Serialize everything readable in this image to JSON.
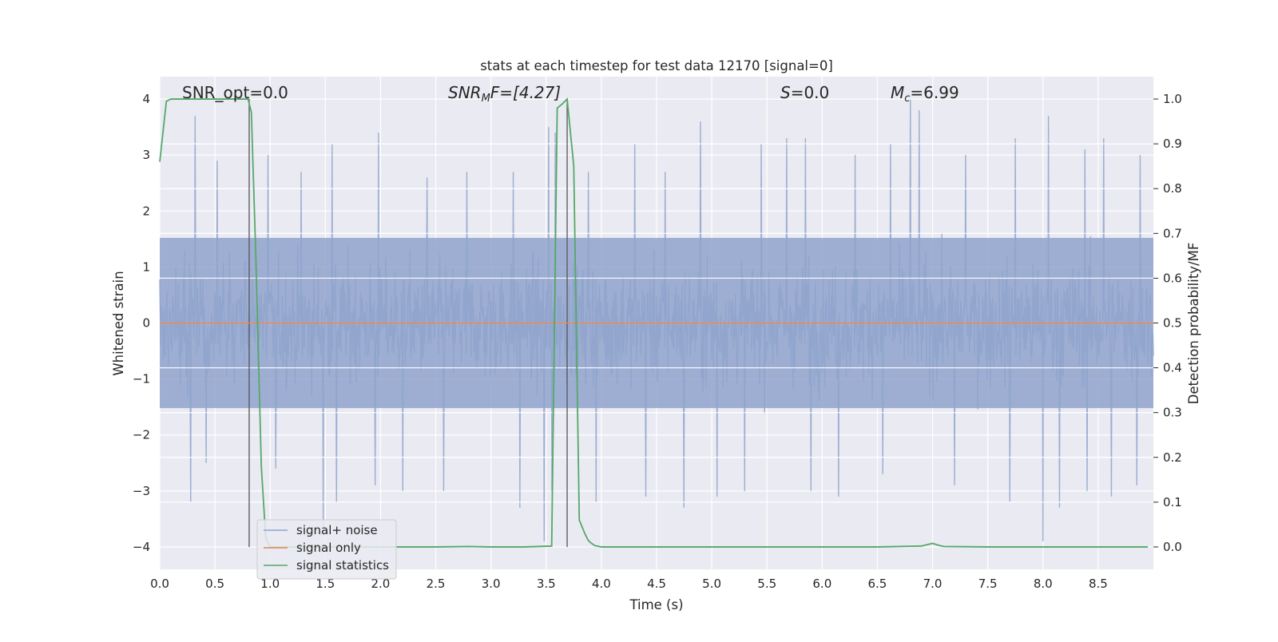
{
  "chart_data": {
    "type": "line",
    "title": "stats at each timestep for test data 12170 [signal=0]",
    "xlabel": "Time (s)",
    "ylabel": "Whitened strain",
    "y2label": "Detection probability/MF",
    "xlim": [
      0.0,
      9.0
    ],
    "ylim": [
      -4.4,
      4.4
    ],
    "y2lim": [
      -0.05,
      1.05
    ],
    "x_ticks": [
      "0.0",
      "0.5",
      "1.0",
      "1.5",
      "2.0",
      "2.5",
      "3.0",
      "3.5",
      "4.0",
      "4.5",
      "5.0",
      "5.5",
      "6.0",
      "6.5",
      "7.0",
      "7.5",
      "8.0",
      "8.5"
    ],
    "y_ticks": [
      "4",
      "3",
      "2",
      "1",
      "0",
      "−1",
      "−2",
      "−3",
      "−4"
    ],
    "y2_ticks": [
      "1.0",
      "0.9",
      "0.8",
      "0.7",
      "0.6",
      "0.5",
      "0.4",
      "0.3",
      "0.2",
      "0.1",
      "0.0"
    ],
    "grid": true,
    "legend_position": "lower-left",
    "annotations": {
      "snr_opt": "SNR_opt=0.0",
      "snr_mf_main": "SNR",
      "snr_mf_sub": "M",
      "snr_mf_rest": "F=[4.27]",
      "s_main": "S",
      "s_rest": "=0.0",
      "mc_main": "M",
      "mc_sub": "c",
      "mc_rest": "=6.99"
    },
    "vertical_lines_x": [
      0.81,
      3.69
    ],
    "series": [
      {
        "name": "signal+ noise",
        "color": "#8fa3cc",
        "note_style": "dense whitened noise",
        "values_summary": {
          "typical_band": [
            -1.6,
            1.6
          ],
          "max": 4.0,
          "min": -3.9
        },
        "peaks": [
          [
            0.32,
            3.7
          ],
          [
            0.52,
            2.9
          ],
          [
            0.98,
            3.0
          ],
          [
            1.28,
            2.7
          ],
          [
            1.56,
            3.2
          ],
          [
            1.98,
            3.4
          ],
          [
            2.2,
            2.9
          ],
          [
            2.42,
            2.6
          ],
          [
            2.78,
            2.7
          ],
          [
            3.2,
            2.7
          ],
          [
            3.52,
            3.5
          ],
          [
            3.58,
            3.4
          ],
          [
            3.88,
            2.7
          ],
          [
            4.3,
            3.2
          ],
          [
            4.58,
            2.7
          ],
          [
            4.9,
            3.6
          ],
          [
            5.45,
            3.2
          ],
          [
            5.68,
            3.3
          ],
          [
            5.85,
            3.3
          ],
          [
            6.3,
            3.0
          ],
          [
            6.62,
            3.2
          ],
          [
            6.8,
            4.0
          ],
          [
            6.88,
            3.8
          ],
          [
            7.3,
            3.0
          ],
          [
            7.75,
            3.3
          ],
          [
            8.05,
            3.7
          ],
          [
            8.38,
            3.1
          ],
          [
            8.55,
            3.3
          ],
          [
            8.88,
            3.0
          ]
        ],
        "troughs": [
          [
            0.28,
            -3.2
          ],
          [
            0.42,
            -2.5
          ],
          [
            1.05,
            -2.6
          ],
          [
            1.48,
            -3.8
          ],
          [
            1.6,
            -3.2
          ],
          [
            1.95,
            -2.9
          ],
          [
            2.2,
            -3.0
          ],
          [
            2.57,
            -3.0
          ],
          [
            3.26,
            -3.3
          ],
          [
            3.48,
            -3.9
          ],
          [
            3.55,
            -3.0
          ],
          [
            3.95,
            -3.2
          ],
          [
            4.4,
            -3.1
          ],
          [
            4.75,
            -3.3
          ],
          [
            5.05,
            -3.1
          ],
          [
            5.3,
            -3.0
          ],
          [
            5.9,
            -3.0
          ],
          [
            6.15,
            -3.1
          ],
          [
            6.55,
            -2.7
          ],
          [
            7.2,
            -2.9
          ],
          [
            7.7,
            -3.2
          ],
          [
            8.0,
            -3.9
          ],
          [
            8.15,
            -3.3
          ],
          [
            8.4,
            -3.0
          ],
          [
            8.62,
            -3.1
          ],
          [
            8.85,
            -2.9
          ]
        ]
      },
      {
        "name": "signal only",
        "color": "#dd8452",
        "x": [
          0.0,
          9.0
        ],
        "y": [
          0.0,
          0.0
        ]
      },
      {
        "name": "signal statistics",
        "color": "#55a868",
        "axis": "right",
        "x": [
          0.0,
          0.06,
          0.1,
          0.15,
          0.2,
          0.3,
          0.4,
          0.5,
          0.6,
          0.7,
          0.8,
          0.83,
          0.87,
          0.92,
          0.96,
          1.0,
          1.2,
          1.5,
          2.0,
          2.5,
          2.8,
          3.0,
          3.3,
          3.55,
          3.6,
          3.65,
          3.69,
          3.75,
          3.8,
          3.85,
          3.88,
          3.9,
          3.94,
          4.0,
          4.5,
          5.0,
          5.5,
          6.0,
          6.5,
          6.9,
          6.95,
          7.0,
          7.05,
          7.1,
          7.5,
          8.0,
          8.5,
          8.95
        ],
        "y": [
          0.86,
          0.995,
          1.0,
          1.0,
          1.0,
          1.0,
          1.0,
          1.0,
          1.0,
          1.0,
          1.0,
          0.97,
          0.65,
          0.18,
          0.02,
          0.0,
          0.0,
          0.0,
          0.0,
          0.0,
          0.001,
          0.0,
          0.0,
          0.002,
          0.98,
          0.99,
          1.0,
          0.85,
          0.06,
          0.03,
          0.015,
          0.01,
          0.003,
          0.0,
          0.0,
          0.0,
          0.0,
          0.0,
          0.0,
          0.002,
          0.005,
          0.008,
          0.004,
          0.001,
          0.0,
          0.0,
          0.0,
          0.0
        ]
      }
    ]
  }
}
